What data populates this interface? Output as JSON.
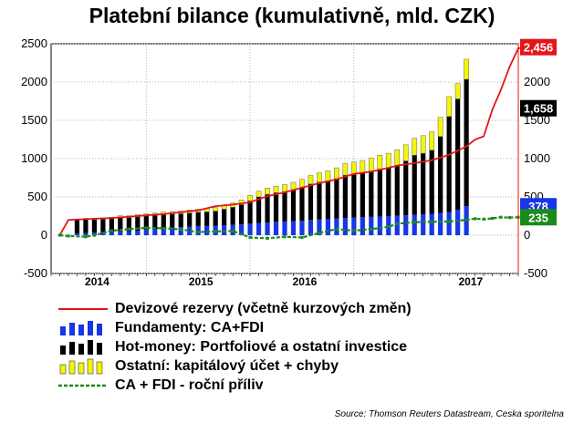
{
  "chart_data": {
    "type": "bar",
    "title": "Platební bilance (kumulativně, mld. CZK)",
    "ylim": [
      -500,
      2500
    ],
    "yticks": [
      -500,
      0,
      500,
      1000,
      1500,
      2000,
      2500
    ],
    "xlabels": [
      "2014",
      "2015",
      "2016",
      "2017"
    ],
    "xlabel_positions_months": [
      12,
      24,
      36,
      48
    ],
    "x_range_months": [
      1,
      55
    ],
    "bars": {
      "months": [
        4,
        5,
        6,
        7,
        8,
        9,
        10,
        11,
        12,
        13,
        14,
        15,
        16,
        17,
        18,
        19,
        20,
        21,
        22,
        23,
        24,
        25,
        26,
        27,
        28,
        29,
        30,
        31,
        32,
        33,
        34,
        35,
        36,
        37,
        38,
        39,
        40,
        41,
        42,
        43,
        44,
        45,
        46,
        47,
        48,
        49
      ],
      "fundamenty": [
        20,
        30,
        35,
        40,
        45,
        50,
        50,
        60,
        70,
        80,
        90,
        100,
        105,
        110,
        120,
        120,
        125,
        130,
        135,
        140,
        150,
        160,
        165,
        175,
        180,
        185,
        190,
        200,
        205,
        210,
        220,
        225,
        230,
        235,
        240,
        245,
        250,
        255,
        260,
        265,
        270,
        280,
        290,
        300,
        330,
        378
      ],
      "hot_money": [
        180,
        175,
        170,
        170,
        170,
        180,
        180,
        180,
        180,
        180,
        180,
        175,
        175,
        180,
        180,
        185,
        190,
        210,
        230,
        260,
        300,
        340,
        370,
        380,
        390,
        410,
        440,
        470,
        490,
        500,
        520,
        560,
        570,
        580,
        600,
        620,
        630,
        660,
        710,
        780,
        800,
        830,
        1000,
        1250,
        1450,
        1658
      ],
      "ostatni": [
        10,
        15,
        15,
        15,
        20,
        25,
        25,
        30,
        30,
        30,
        35,
        35,
        35,
        40,
        40,
        40,
        45,
        50,
        55,
        60,
        70,
        75,
        80,
        85,
        90,
        95,
        100,
        110,
        120,
        130,
        140,
        150,
        155,
        160,
        170,
        180,
        190,
        200,
        210,
        220,
        230,
        240,
        250,
        260,
        200,
        262
      ]
    },
    "series": [
      {
        "name": "Devizové rezervy (včetně kurzových změn)",
        "type": "line",
        "color": "#e3151a",
        "points": [
          [
            2,
            0
          ],
          [
            3,
            200
          ],
          [
            5,
            210
          ],
          [
            6,
            215
          ],
          [
            8,
            225
          ],
          [
            10,
            240
          ],
          [
            12,
            260
          ],
          [
            14,
            275
          ],
          [
            16,
            300
          ],
          [
            18,
            325
          ],
          [
            20,
            380
          ],
          [
            22,
            400
          ],
          [
            24,
            430
          ],
          [
            26,
            510
          ],
          [
            28,
            560
          ],
          [
            30,
            620
          ],
          [
            32,
            680
          ],
          [
            34,
            730
          ],
          [
            36,
            800
          ],
          [
            38,
            830
          ],
          [
            40,
            880
          ],
          [
            41,
            910
          ],
          [
            43,
            940
          ],
          [
            45,
            980
          ],
          [
            47,
            1050
          ],
          [
            49,
            1160
          ],
          [
            50,
            1250
          ],
          [
            51,
            1290
          ],
          [
            52,
            1640
          ],
          [
            53,
            1900
          ],
          [
            54,
            2200
          ],
          [
            55,
            2440
          ],
          [
            56,
            2456
          ]
        ]
      },
      {
        "name": "CA + FDI - roční příliv",
        "type": "line-dashed",
        "color": "#1a8a1a",
        "points": [
          [
            2,
            0
          ],
          [
            3,
            -10
          ],
          [
            5,
            -20
          ],
          [
            6,
            0
          ],
          [
            8,
            60
          ],
          [
            10,
            80
          ],
          [
            12,
            95
          ],
          [
            14,
            90
          ],
          [
            16,
            75
          ],
          [
            18,
            40
          ],
          [
            20,
            50
          ],
          [
            22,
            55
          ],
          [
            24,
            -30
          ],
          [
            26,
            -40
          ],
          [
            28,
            -20
          ],
          [
            30,
            -30
          ],
          [
            32,
            30
          ],
          [
            34,
            80
          ],
          [
            36,
            60
          ],
          [
            38,
            80
          ],
          [
            40,
            110
          ],
          [
            41,
            150
          ],
          [
            43,
            170
          ],
          [
            45,
            175
          ],
          [
            47,
            180
          ],
          [
            49,
            200
          ],
          [
            50,
            215
          ],
          [
            51,
            210
          ],
          [
            52,
            220
          ],
          [
            53,
            235
          ],
          [
            54,
            230
          ],
          [
            55,
            235
          ]
        ]
      }
    ],
    "end_badges": [
      {
        "label": "2,456",
        "value": 2456,
        "color": "#e3151a"
      },
      {
        "label": "1,658",
        "value": 1658,
        "color": "#000000"
      },
      {
        "label": "378",
        "value": 378,
        "color": "#1636e8"
      },
      {
        "label": "235",
        "value": 235,
        "color": "#1a8a1a"
      }
    ],
    "legend": [
      {
        "label": "Devizové rezervy (včetně kurzových změn)",
        "kind": "line",
        "color": "#e3151a"
      },
      {
        "label": "Fundamenty: CA+FDI",
        "kind": "bars",
        "color": "#1636e8"
      },
      {
        "label": "Hot-money: Portfoliové a ostatní investice",
        "kind": "bars",
        "color": "#000000"
      },
      {
        "label": "Ostatní: kapitálový účet + chyby",
        "kind": "bars-outline",
        "color": "#f5f500"
      },
      {
        "label": "CA + FDI - roční příliv",
        "kind": "dashed",
        "color": "#1a8a1a"
      }
    ],
    "source": "Source: Thomson Reuters Datastream, Ceska sporitelna"
  }
}
